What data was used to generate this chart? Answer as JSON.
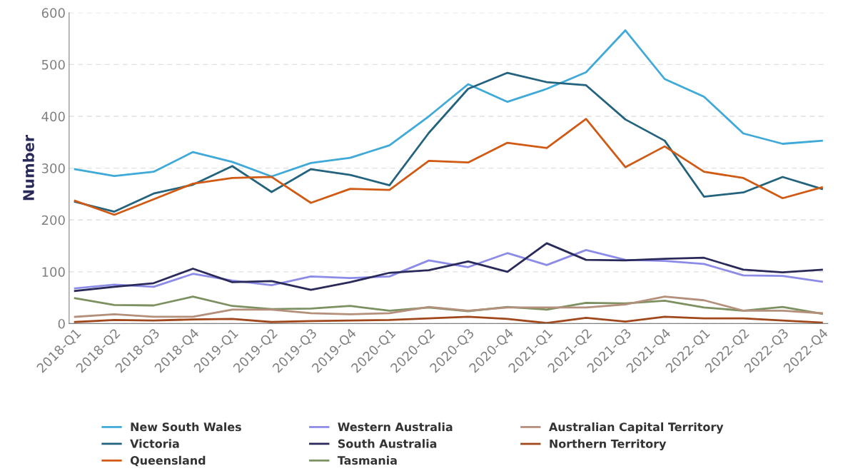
{
  "chart_data": {
    "type": "line",
    "ylabel": "Number",
    "categories": [
      "2018-Q1",
      "2018-Q2",
      "2018-Q3",
      "2018-Q4",
      "2019-Q1",
      "2019-Q2",
      "2019-Q3",
      "2019-Q4",
      "2020-Q1",
      "2020-Q2",
      "2020-Q3",
      "2020-Q4",
      "2021-Q1",
      "2021-Q2",
      "2021-Q3",
      "2021-Q4",
      "2022-Q1",
      "2022-Q2",
      "2022-Q3",
      "2022-Q4"
    ],
    "series": [
      {
        "name": "New South Wales",
        "color": "#3fa9d8",
        "values": [
          298,
          285,
          293,
          331,
          312,
          284,
          310,
          320,
          344,
          400,
          462,
          428,
          453,
          485,
          566,
          472,
          438,
          367,
          347,
          353
        ]
      },
      {
        "name": "Victoria",
        "color": "#23637e",
        "values": [
          235,
          216,
          251,
          268,
          304,
          254,
          298,
          287,
          267,
          368,
          453,
          484,
          466,
          460,
          394,
          353,
          245,
          253,
          283,
          260
        ]
      },
      {
        "name": "Queensland",
        "color": "#d05a13",
        "values": [
          237,
          210,
          240,
          270,
          281,
          283,
          233,
          260,
          258,
          314,
          311,
          349,
          339,
          395,
          302,
          342,
          293,
          281,
          242,
          263
        ]
      },
      {
        "name": "Western Australia",
        "color": "#8c8ce8",
        "values": [
          68,
          75,
          71,
          96,
          83,
          74,
          91,
          88,
          91,
          122,
          109,
          136,
          113,
          142,
          123,
          121,
          115,
          93,
          92,
          81
        ]
      },
      {
        "name": "South Australia",
        "color": "#2a2a5a",
        "values": [
          63,
          71,
          78,
          106,
          80,
          82,
          65,
          80,
          98,
          103,
          120,
          100,
          155,
          123,
          122,
          125,
          127,
          104,
          99,
          104
        ]
      },
      {
        "name": "Tasmania",
        "color": "#7c9060",
        "values": [
          49,
          36,
          35,
          52,
          34,
          28,
          29,
          34,
          25,
          31,
          24,
          32,
          27,
          40,
          39,
          44,
          31,
          25,
          32,
          19
        ]
      },
      {
        "name": "Australian Capital Territory",
        "color": "#b4907c",
        "values": [
          13,
          18,
          13,
          13,
          27,
          27,
          20,
          18,
          20,
          32,
          25,
          31,
          31,
          31,
          37,
          52,
          45,
          25,
          25,
          20
        ]
      },
      {
        "name": "Northern Territory",
        "color": "#a0481c",
        "values": [
          3,
          7,
          6,
          8,
          9,
          3,
          5,
          6,
          7,
          10,
          13,
          9,
          1,
          11,
          4,
          13,
          10,
          10,
          6,
          2
        ]
      }
    ],
    "ylim": [
      0,
      600
    ],
    "yticks": [
      0,
      100,
      200,
      300,
      400,
      500,
      600
    ],
    "grid": "y",
    "legend": "bottom",
    "marker": "none",
    "line_style": "solid"
  }
}
